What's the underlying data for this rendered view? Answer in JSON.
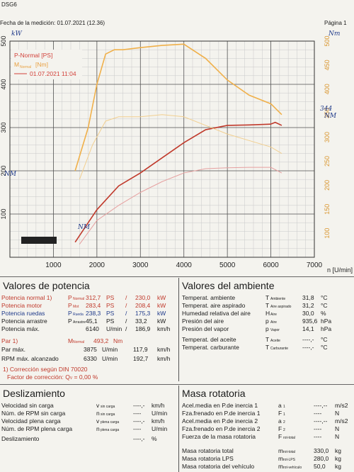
{
  "header": {
    "program": "DSG6",
    "date_label": "Fecha de la medición: 01.07.2021 (12.36)",
    "page": "Página 1"
  },
  "chart_data": {
    "type": "line",
    "xlabel": "n [U/min]",
    "xticks": [
      "1000",
      "2000",
      "3000",
      "4000",
      "5000",
      "6000",
      "7000"
    ],
    "xlim": [
      0,
      7000
    ],
    "ylim_left": [
      0,
      500
    ],
    "yticks_left": [
      "100",
      "200",
      "300",
      "400",
      "500"
    ],
    "yticks_right": [
      "100",
      "150",
      "200",
      "250",
      "300",
      "350",
      "400",
      "450",
      "500"
    ],
    "ylim_right": [
      50,
      500
    ],
    "legend": [
      {
        "label": "P-Normal [PS]",
        "color": "#d2413a"
      },
      {
        "label": "M",
        "color": "#e8a040"
      },
      {
        "label": "01.07.2021 11:04",
        "color": "#d2413a"
      }
    ],
    "legend_sub": "Normal",
    "legend_unit": "[Nm]",
    "series": [
      {
        "name": "P-Normal [PS]",
        "color": "#c0392b",
        "x": [
          1500,
          2000,
          2500,
          3000,
          3500,
          4000,
          4500,
          5000,
          5500,
          6000,
          6100,
          6250
        ],
        "y": [
          35,
          110,
          165,
          195,
          230,
          265,
          295,
          305,
          306,
          308,
          312,
          305
        ]
      },
      {
        "name": "M",
        "color": "#f0b04a",
        "x": [
          1500,
          1800,
          2000,
          2200,
          2400,
          2600,
          3000,
          3500,
          4000,
          4500,
          5000,
          5500,
          6000,
          6250
        ],
        "y": [
          200,
          300,
          400,
          470,
          480,
          480,
          485,
          490,
          493,
          460,
          410,
          375,
          355,
          330
        ]
      },
      {
        "name": "",
        "color": "#e6a0a0",
        "x": [
          1600,
          2000,
          2500,
          3000,
          3500,
          4000,
          4500,
          5000,
          5500,
          6000,
          6250
        ],
        "y": [
          30,
          85,
          120,
          150,
          175,
          195,
          205,
          207,
          208,
          208,
          195
        ]
      },
      {
        "name": "",
        "color": "#f2cf8f",
        "x": [
          1600,
          1900,
          2200,
          2500,
          3000,
          3500,
          4000,
          4500,
          5000,
          5500,
          6000,
          6250
        ],
        "y": [
          180,
          260,
          315,
          325,
          325,
          330,
          325,
          305,
          285,
          270,
          255,
          240
        ]
      }
    ],
    "annotations": [
      "kW",
      "Nm",
      "NM",
      "NM",
      "344",
      "NM"
    ]
  },
  "potencia": {
    "title": "Valores de potencia",
    "rows": [
      {
        "label": "Potencia normal 1)",
        "sym": "P",
        "sub": "Normal",
        "v1": "312,7",
        "u1": "PS",
        "sep": "/",
        "v2": "230,0",
        "u2": "kW"
      },
      {
        "label": "Potencia motor",
        "sym": "P",
        "sub": "Mot",
        "v1": "283,4",
        "u1": "PS",
        "sep": "/",
        "v2": "208,4",
        "u2": "kW"
      },
      {
        "label": "Potencia ruedas",
        "sym": "P",
        "sub": "Rueda",
        "v1": "238,3",
        "u1": "PS",
        "sep": "/",
        "v2": "175,3",
        "u2": "kW"
      },
      {
        "label": "Potencia arrastre",
        "sym": "P",
        "sub": "Arrastre",
        "v1": "45,1",
        "u1": "PS",
        "sep": "/",
        "v2": "33,2",
        "u2": "kW"
      },
      {
        "label": "Potencia máx.",
        "sym": "",
        "sub": "",
        "v1": "6140",
        "u1": "U/min",
        "sep": "/",
        "v2": "186,9",
        "u2": "km/h"
      }
    ],
    "par_label": "Par 1)",
    "par_sym": "M",
    "par_sub": "Normal",
    "par_value": "493,2",
    "par_unit": "Nm",
    "parmax_label": "Par máx.",
    "parmax_v1": "3875",
    "parmax_u1": "U/min",
    "parmax_v2": "117,9",
    "parmax_u2": "km/h",
    "rpm_label": "RPM máx. alcanzado",
    "rpm_v1": "6330",
    "rpm_u1": "U/min",
    "rpm_v2": "192,7",
    "rpm_u2": "km/h",
    "foot1": "1) Corrección según DIN 70020",
    "foot2": "Factor de corrección: Q",
    "foot2_sub": "V",
    "foot2_val": "=   0,00 %"
  },
  "ambiente": {
    "title": "Valores del ambiente",
    "rows": [
      {
        "label": "Temperat. ambiente",
        "sym": "T",
        "sub": "Ambiente",
        "val": "31,8",
        "unit": "°C"
      },
      {
        "label": "Temperat. aire aspirado",
        "sym": "T",
        "sub": "Aire aspirado",
        "val": "31,2",
        "unit": "°C"
      },
      {
        "label": "Humedad relativa del aire",
        "sym": "H",
        "sub": "Aire",
        "val": "30,0",
        "unit": "%"
      },
      {
        "label": "Presión del aire",
        "sym": "p",
        "sub": "Aire",
        "val": "935,6",
        "unit": "hPa"
      },
      {
        "label": "Presión del vapor",
        "sym": "p",
        "sub": "Vapor",
        "val": "14,1",
        "unit": "hPa"
      },
      {
        "label": "Temperat. del aceite",
        "sym": "T",
        "sub": "Aceite",
        "val": "----,-",
        "unit": "°C"
      },
      {
        "label": "Temperat. carburante",
        "sym": "T",
        "sub": "Carburante",
        "val": "----,-",
        "unit": "°C"
      }
    ]
  },
  "desliz": {
    "title": "Deslizamiento",
    "rows": [
      {
        "label": "Velocidad sin carga",
        "sym": "v",
        "sub": "sin carga",
        "val": "----,-",
        "unit": "km/h"
      },
      {
        "label": "Núm. de RPM sin carga",
        "sym": "n",
        "sub": "sin carga",
        "val": "----",
        "unit": "U/min"
      },
      {
        "label": "Velocidad plena carga",
        "sym": "v",
        "sub": "plena carga",
        "val": "----,-",
        "unit": "km/h"
      },
      {
        "label": "Núm. de RPM plena carga",
        "sym": "n",
        "sub": "plena carga",
        "val": "----",
        "unit": "U/min"
      },
      {
        "label": "Deslizamiento",
        "sym": "",
        "sub": "",
        "val": "----,-",
        "unit": "%"
      }
    ]
  },
  "masa": {
    "title": "Masa rotatoria",
    "rows": [
      {
        "label": "Acel.media en P.de inercia 1",
        "sym": "a",
        "sub": "1",
        "val": "----,--",
        "unit": "m/s2"
      },
      {
        "label": "Fza.frenado en P.de inercia 1",
        "sym": "F",
        "sub": "1",
        "val": "----",
        "unit": "N"
      },
      {
        "label": "Acel.media en P.de inercia 2",
        "sym": "a",
        "sub": "2",
        "val": "----,--",
        "unit": "m/s2"
      },
      {
        "label": "Fza.frenado en P.de inercia 2",
        "sym": "F",
        "sub": "2",
        "val": "----",
        "unit": "N"
      },
      {
        "label": "Fuerza de la masa rotatoria",
        "sym": "F",
        "sub": "rot-total",
        "val": "----",
        "unit": "N"
      },
      {
        "label": "Masa rotatoria total",
        "sym": "m",
        "sub": "rot-total",
        "val": "330,0",
        "unit": "kg"
      },
      {
        "label": "Masa rotatoria LPS",
        "sym": "m",
        "sub": "rot-LPS",
        "val": "280,0",
        "unit": "kg"
      },
      {
        "label": "Masa rotatoria del vehículo",
        "sym": "m",
        "sub": "rot-vehículo",
        "val": "50,0",
        "unit": "kg"
      }
    ]
  }
}
